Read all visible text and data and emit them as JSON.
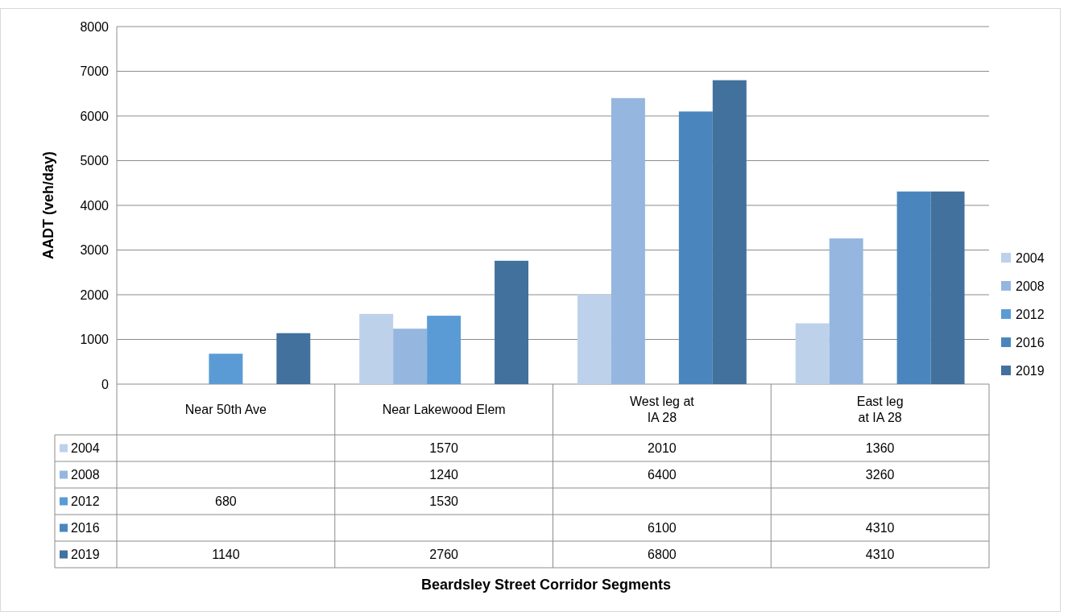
{
  "chart_data": {
    "type": "bar",
    "annotations": [
      "Beardsley Street Corridor Segments"
    ],
    "ylabel": "AADT (veh/day)",
    "categories": [
      "Near 50th Ave",
      "Near Lakewood Elem",
      "West leg at\nIA 28",
      "East leg\nat IA 28"
    ],
    "series": [
      {
        "name": "2004",
        "color": "#bdd1ea",
        "values": [
          null,
          1570,
          2010,
          1360
        ]
      },
      {
        "name": "2008",
        "color": "#95b6de",
        "values": [
          null,
          1240,
          6400,
          3260
        ]
      },
      {
        "name": "2012",
        "color": "#5b9bd5",
        "values": [
          680,
          1530,
          null,
          null
        ]
      },
      {
        "name": "2016",
        "color": "#4a86bd",
        "values": [
          null,
          null,
          6100,
          4310
        ]
      },
      {
        "name": "2019",
        "color": "#41719c",
        "values": [
          1140,
          2760,
          6800,
          4310
        ]
      }
    ],
    "ylim": [
      0,
      8000
    ],
    "yticks": [
      0,
      1000,
      2000,
      3000,
      4000,
      5000,
      6000,
      7000,
      8000
    ],
    "grid": "y",
    "legend": "right",
    "data_labels": true
  }
}
